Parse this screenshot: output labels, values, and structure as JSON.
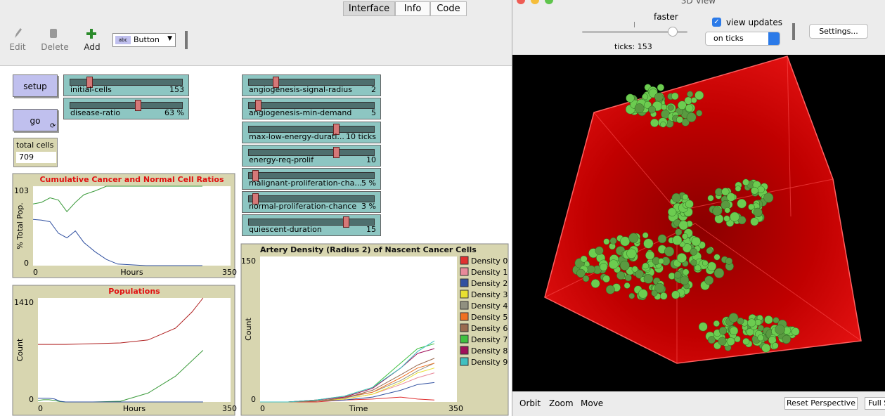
{
  "tabs": [
    "Interface",
    "Info",
    "Code"
  ],
  "toolbar": {
    "edit": "Edit",
    "delete": "Delete",
    "add": "Add",
    "widget_type": "Button"
  },
  "buttons": {
    "setup": "setup",
    "go": "go"
  },
  "sliders": [
    {
      "label": "initial-cells",
      "value": "153"
    },
    {
      "label": "disease-ratio",
      "value": "63 %"
    },
    {
      "label": "angiogenesis-signal-radius",
      "value": "2"
    },
    {
      "label": "angiogenesis-min-demand",
      "value": "5"
    },
    {
      "label": "max-low-energy-durati...",
      "value": "10 ticks"
    },
    {
      "label": "energy-req-prolif",
      "value": "10"
    },
    {
      "label": "malignant-proliferation-cha...",
      "value": "5 %"
    },
    {
      "label": "normal-proliferation-chance",
      "value": "3 %"
    },
    {
      "label": "quiescent-duration",
      "value": "15"
    }
  ],
  "monitor": {
    "label": "total cells",
    "value": "709"
  },
  "plots": [
    {
      "type": "line",
      "title": "Cumulative Cancer and Normal Cell Ratios",
      "x_label": "Hours",
      "y_label": "% Total Pop.",
      "xlim": [
        0,
        350
      ],
      "ylim": [
        0,
        103
      ],
      "x": [
        0,
        15,
        30,
        45,
        60,
        75,
        90,
        110,
        130,
        150,
        200,
        250,
        300
      ],
      "series": [
        {
          "color": "#3a9a3a",
          "values": [
            80,
            82,
            88,
            85,
            70,
            82,
            92,
            97,
            103,
            103,
            103,
            103,
            103
          ]
        },
        {
          "color": "#3050a0",
          "values": [
            60,
            59,
            57,
            42,
            36,
            45,
            30,
            18,
            8,
            2,
            0,
            0,
            0
          ]
        }
      ]
    },
    {
      "type": "line",
      "title": "Populations",
      "x_label": "Hours",
      "y_label": "Count",
      "xlim": [
        0,
        350
      ],
      "ylim": [
        0,
        1410
      ],
      "x": [
        0,
        10,
        20,
        30,
        40,
        50,
        100,
        150,
        200,
        250,
        280,
        300
      ],
      "series": [
        {
          "color": "#b02020",
          "values": [
            780,
            780,
            780,
            780,
            780,
            780,
            790,
            800,
            840,
            1000,
            1220,
            1410
          ]
        },
        {
          "color": "#3a9a3a",
          "values": [
            20,
            30,
            30,
            20,
            5,
            0,
            0,
            10,
            120,
            350,
            560,
            700
          ]
        },
        {
          "color": "#3050a0",
          "values": [
            50,
            50,
            50,
            40,
            10,
            0,
            0,
            0,
            0,
            0,
            0,
            0
          ]
        }
      ]
    },
    {
      "type": "line",
      "title": "Artery Density (Radius 2) of Nascent Cancer Cells",
      "x_label": "Time",
      "y_label": "Count",
      "xlim": [
        0,
        350
      ],
      "ylim": [
        0,
        150
      ],
      "x": [
        0,
        50,
        100,
        150,
        200,
        250,
        280,
        310
      ],
      "series": [
        {
          "name": "Density 0",
          "color": "#e03030",
          "values": [
            0,
            0,
            0,
            2,
            3,
            5,
            3,
            2
          ]
        },
        {
          "name": "Density 1",
          "color": "#e88a9a",
          "values": [
            0,
            0,
            1,
            3,
            8,
            18,
            25,
            30
          ]
        },
        {
          "name": "Density 2",
          "color": "#3050a0",
          "values": [
            0,
            0,
            1,
            2,
            5,
            12,
            18,
            20
          ]
        },
        {
          "name": "Density 3",
          "color": "#e8e030",
          "values": [
            0,
            0,
            1,
            3,
            8,
            20,
            30,
            35
          ]
        },
        {
          "name": "Density 4",
          "color": "#909080",
          "values": [
            0,
            0,
            1,
            4,
            10,
            22,
            32,
            40
          ]
        },
        {
          "name": "Density 5",
          "color": "#f07020",
          "values": [
            0,
            0,
            2,
            5,
            10,
            25,
            35,
            40
          ]
        },
        {
          "name": "Density 6",
          "color": "#9a6a50",
          "values": [
            0,
            0,
            1,
            4,
            12,
            28,
            38,
            45
          ]
        },
        {
          "name": "Density 7",
          "color": "#40c040",
          "values": [
            0,
            0,
            2,
            6,
            15,
            40,
            55,
            60
          ]
        },
        {
          "name": "Density 8",
          "color": "#a0105a",
          "values": [
            0,
            0,
            2,
            5,
            14,
            35,
            50,
            55
          ]
        },
        {
          "name": "Density 9",
          "color": "#40c0c0",
          "values": [
            0,
            0,
            2,
            6,
            15,
            35,
            52,
            63
          ]
        }
      ]
    }
  ],
  "view3d": {
    "title": "3D View",
    "speed_label": "faster",
    "view_updates": "view updates",
    "update_mode": "on ticks",
    "settings": "Settings...",
    "ticks": "ticks: 153",
    "bottom": [
      "Orbit",
      "Zoom",
      "Move"
    ],
    "reset": "Reset Perspective",
    "full": "Full S"
  }
}
